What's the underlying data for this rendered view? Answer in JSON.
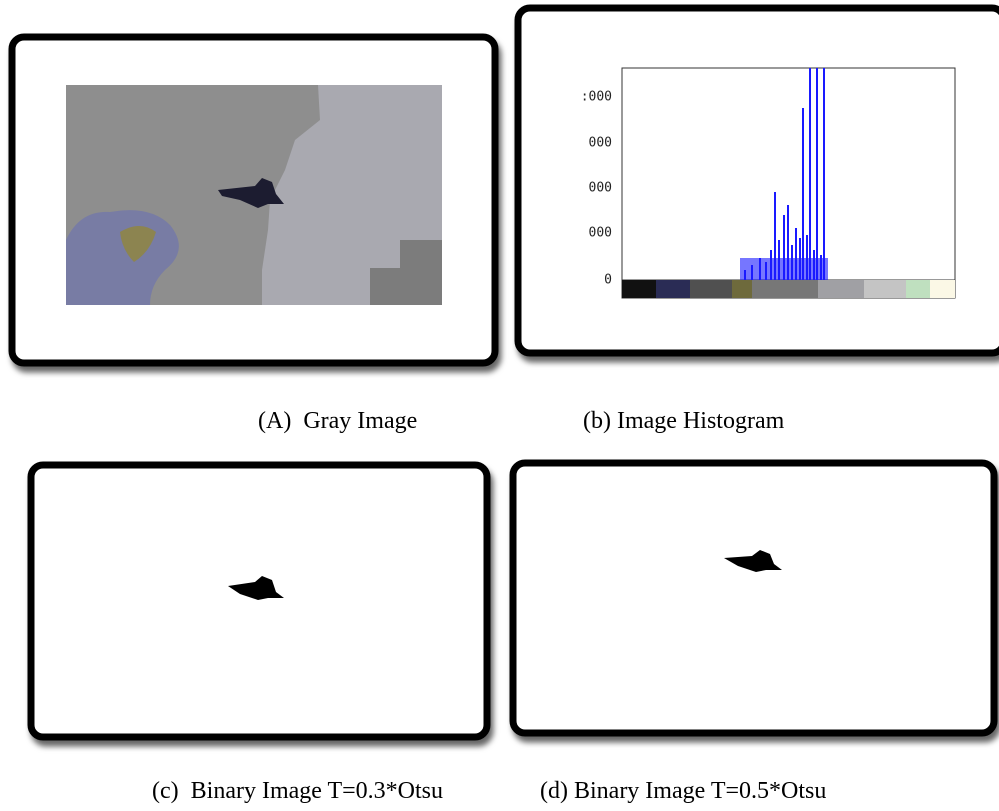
{
  "figures": [
    {
      "caption": "(A)  Gray Image"
    },
    {
      "caption": "(b) Image Histogram",
      "y_tick_labels": [
        "0",
        "000",
        "000",
        "000",
        ":000"
      ]
    },
    {
      "caption": "(c)  Binary Image T=0.3*Otsu"
    },
    {
      "caption": "(d) Binary Image T=0.5*Otsu"
    }
  ]
}
